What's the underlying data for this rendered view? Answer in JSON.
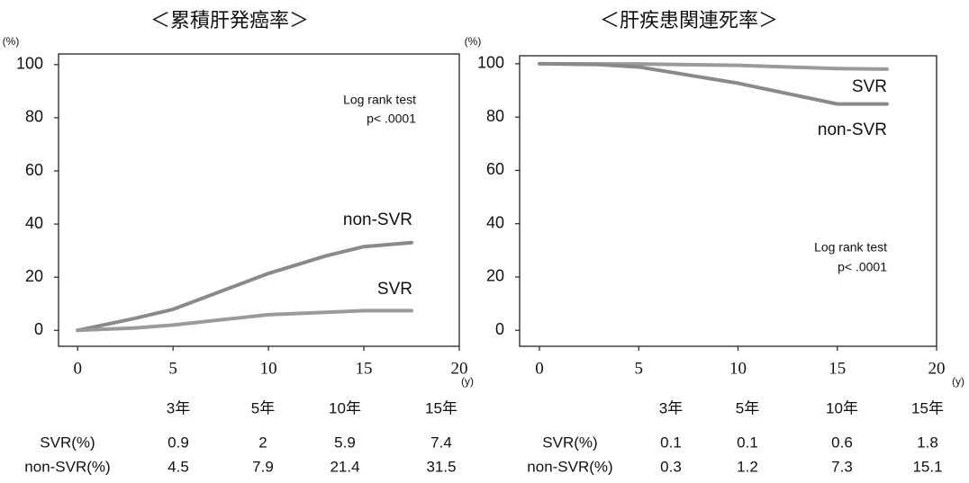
{
  "chart_data": [
    {
      "type": "line",
      "title": "＜累積肝発癌率＞",
      "y_label": "(%)",
      "x_label": "(y)",
      "xlim": [
        -1,
        20
      ],
      "xticks": [
        0,
        5,
        10,
        15,
        20
      ],
      "ylim": [
        -6,
        104
      ],
      "yticks": [
        0,
        20,
        40,
        60,
        80,
        100
      ],
      "series": [
        {
          "name": "non-SVR",
          "color": "#8a8a8a",
          "x": [
            0,
            3,
            5,
            10,
            13,
            15,
            17.5
          ],
          "values": [
            0,
            4.5,
            7.9,
            21.4,
            28,
            31.5,
            33
          ]
        },
        {
          "name": "SVR",
          "color": "#9a9a9a",
          "x": [
            0,
            3,
            5,
            10,
            15,
            17.5
          ],
          "values": [
            0,
            0.9,
            2,
            5.9,
            7.4,
            7.4
          ]
        }
      ],
      "annotations": [
        "Log rank test",
        "p< .0001"
      ],
      "table": {
        "columns": [
          "3年",
          "5年",
          "10年",
          "15年"
        ],
        "rows": [
          {
            "label": "SVR(%)",
            "values": [
              0.9,
              2,
              5.9,
              7.4
            ]
          },
          {
            "label": "non-SVR(%)",
            "values": [
              4.5,
              7.9,
              21.4,
              31.5
            ]
          }
        ]
      }
    },
    {
      "type": "line",
      "title": "＜肝疾患関連死率＞",
      "y_label": "(%)",
      "x_label": "(y)",
      "xlim": [
        -1,
        20
      ],
      "xticks": [
        0,
        5,
        10,
        15,
        20
      ],
      "ylim": [
        -6,
        103
      ],
      "yticks": [
        0,
        20,
        40,
        60,
        80,
        100
      ],
      "series": [
        {
          "name": "SVR",
          "color": "#9a9a9a",
          "x": [
            0,
            3,
            5,
            10,
            15,
            17.5
          ],
          "values": [
            100,
            99.9,
            99.9,
            99.4,
            98.2,
            98
          ]
        },
        {
          "name": "non-SVR",
          "color": "#8a8a8a",
          "x": [
            0,
            3,
            5,
            10,
            15,
            17.5
          ],
          "values": [
            100,
            99.7,
            98.8,
            92.7,
            84.9,
            84.9
          ]
        }
      ],
      "annotations": [
        "Log rank test",
        "p< .0001"
      ],
      "table": {
        "columns": [
          "3年",
          "5年",
          "10年",
          "15年"
        ],
        "rows": [
          {
            "label": "SVR(%)",
            "values": [
              0.1,
              0.1,
              0.6,
              1.8
            ]
          },
          {
            "label": "non-SVR(%)",
            "values": [
              0.3,
              1.2,
              7.3,
              15.1
            ]
          }
        ]
      }
    }
  ]
}
